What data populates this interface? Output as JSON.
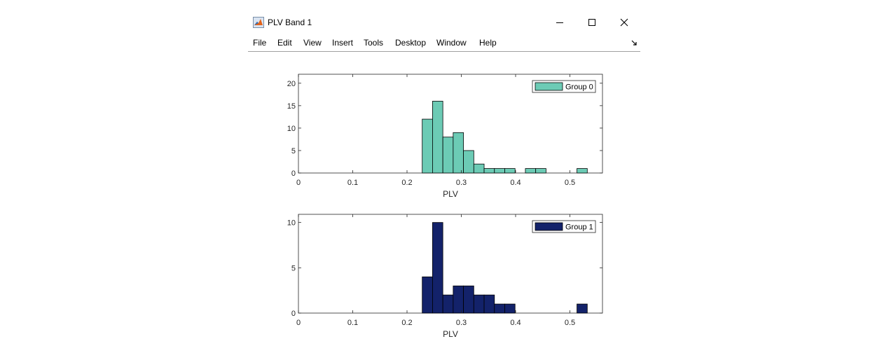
{
  "window": {
    "title": "PLV Band 1",
    "menu": [
      "File",
      "Edit",
      "View",
      "Insert",
      "Tools",
      "Desktop",
      "Window",
      "Help"
    ]
  },
  "chart_data": [
    {
      "type": "bar",
      "xlabel": "PLV",
      "ylabel": "",
      "xlim": [
        0,
        0.56
      ],
      "ylim": [
        0,
        22
      ],
      "xticks": [
        0,
        0.1,
        0.2,
        0.3,
        0.4,
        0.5
      ],
      "yticks": [
        0,
        5,
        10,
        15,
        20
      ],
      "bin_width": 0.019,
      "bar_color": "#6ccbb5",
      "legend_position": "top-right",
      "series": [
        {
          "name": "Group 0",
          "bin_start": [
            0.228,
            0.247,
            0.266,
            0.285,
            0.304,
            0.323,
            0.342,
            0.361,
            0.38,
            0.399,
            0.418,
            0.437,
            0.456,
            0.475,
            0.494,
            0.513
          ],
          "values": [
            12,
            16,
            8,
            9,
            5,
            2,
            1,
            1,
            1,
            0,
            1,
            1,
            0,
            0,
            0,
            1
          ]
        }
      ]
    },
    {
      "type": "bar",
      "xlabel": "PLV",
      "ylabel": "",
      "xlim": [
        0,
        0.56
      ],
      "ylim": [
        0,
        10.9
      ],
      "xticks": [
        0,
        0.1,
        0.2,
        0.3,
        0.4,
        0.5
      ],
      "yticks": [
        0,
        5,
        10
      ],
      "bin_width": 0.019,
      "bar_color": "#13226a",
      "legend_position": "top-right",
      "series": [
        {
          "name": "Group 1",
          "bin_start": [
            0.228,
            0.247,
            0.266,
            0.285,
            0.304,
            0.323,
            0.342,
            0.361,
            0.38,
            0.399,
            0.418,
            0.437,
            0.456,
            0.475,
            0.494,
            0.513
          ],
          "values": [
            4,
            10,
            2,
            3,
            3,
            2,
            2,
            1,
            1,
            0,
            0,
            0,
            0,
            0,
            0,
            1
          ]
        }
      ]
    }
  ]
}
